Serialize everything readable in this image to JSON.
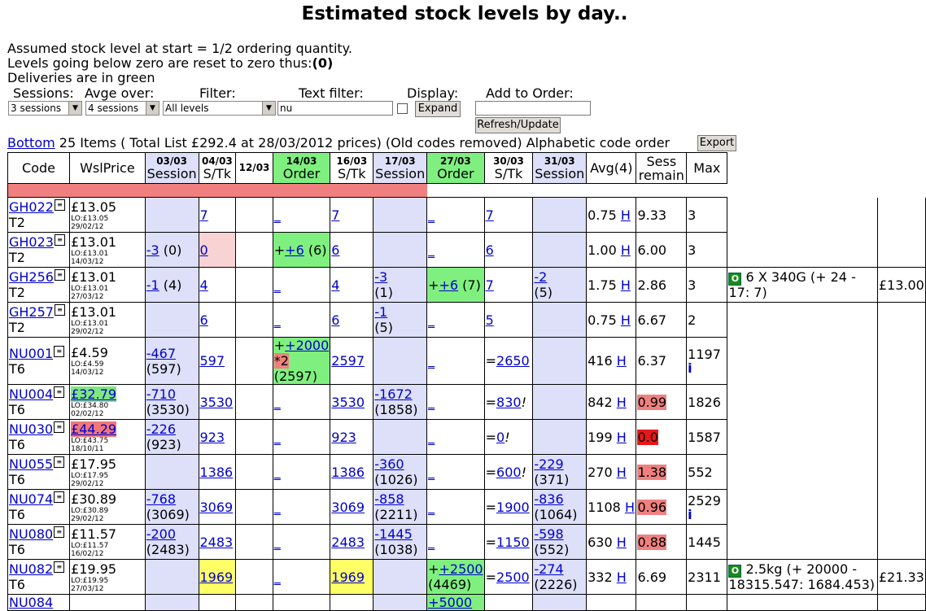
{
  "title": "Estimated stock levels by day..",
  "intro": {
    "line1": "Assumed stock level at start = 1/2 ordering quantity.",
    "line2": "Levels going below zero are reset to zero thus:",
    "line2_bold": "(0)",
    "line3": "Deliveries are in green"
  },
  "controls": {
    "sessions_label": "Sessions:",
    "avge_label": "Avge over:",
    "filter_label": "Filter:",
    "text_filter_label": "Text filter:",
    "display_label": "Display:",
    "add_order_label": "Add to Order:",
    "sessions_value": "3 sessions",
    "avge_value": "4 sessions",
    "filter_value": "All levels",
    "text_filter_value": "nu",
    "expand_label": "Expand",
    "refresh_label": "Refresh/Update",
    "export_label": "Export"
  },
  "summary": {
    "bottom_link": "Bottom",
    "text": "25 Items ( Total List £292.4 at 28/03/2012 prices) (Old codes removed) Alphabetic code order"
  },
  "headers": {
    "code": "Code",
    "price": "WslPrice",
    "c1_date": "03/03",
    "c1_type": "Session",
    "c2_date": "04/03",
    "c2_type": "S/Tk",
    "c3_date": "12/03",
    "c4_date": "14/03",
    "c4_type": "Order",
    "c5_date": "16/03",
    "c5_type": "S/Tk",
    "c6_date": "17/03",
    "c6_type": "Session",
    "c7_date": "27/03",
    "c7_type": "Order",
    "c8_date": "30/03",
    "c8_type": "S/Tk",
    "c9_date": "31/03",
    "c9_type": "Session",
    "avg": "Avg(4)",
    "sess1": "Sess",
    "sess2": "remain",
    "max": "Max"
  },
  "rows": [
    {
      "code": "GH022",
      "cat": "T2",
      "price": "£13.05",
      "lo": "LO:£13.05",
      "date": "29/02/12",
      "c1a": "",
      "c1b": "",
      "c2": "7",
      "c4": "_",
      "c5": "7",
      "c6a": "",
      "c6b": "",
      "c7": "_",
      "c8p": "",
      "c8": "7",
      "c9a": "",
      "c9b": "",
      "avg": "0.75",
      "h": "H",
      "sess": "9.33",
      "max": "3",
      "extra": "",
      "extra_price": ""
    },
    {
      "code": "GH023",
      "cat": "T2",
      "price": "£13.01",
      "lo": "LO:£13.01",
      "date": "14/03/12",
      "c1a": "-3",
      "c1b": "(0)",
      "c2": "0",
      "c4": "+6",
      "c4b": "(6)",
      "c5": "6",
      "c6a": "",
      "c6b": "",
      "c7": "_",
      "c8p": "",
      "c8": "6",
      "c9a": "",
      "c9b": "",
      "avg": "1.00",
      "h": "H",
      "sess": "6.00",
      "max": "3",
      "extra": "",
      "extra_price": ""
    },
    {
      "code": "GH256",
      "cat": "T2",
      "price": "£13.01",
      "lo": "LO:£13.01",
      "date": "27/03/12",
      "c1a": "-1",
      "c1b": "(4)",
      "c2": "4",
      "c4": "_",
      "c5": "4",
      "c6a": "-3",
      "c6b": "(1)",
      "c7": "+6",
      "c7b": "(7)",
      "c8p": "",
      "c8": "7",
      "c9a": "-2",
      "c9b": "(5)",
      "avg": "1.75",
      "h": "H",
      "sess": "2.86",
      "max": "3",
      "extra": "6 X 340G (+ 24 - 17: 7)",
      "extra_price": "£13.00"
    },
    {
      "code": "GH257",
      "cat": "T2",
      "price": "£13.01",
      "lo": "LO:£13.01",
      "date": "29/02/12",
      "c1a": "",
      "c1b": "",
      "c2": "6",
      "c4": "_",
      "c5": "6",
      "c6a": "-1",
      "c6b": "(5)",
      "c7": "_",
      "c8p": "",
      "c8": "5",
      "c9a": "",
      "c9b": "",
      "avg": "0.75",
      "h": "H",
      "sess": "6.67",
      "max": "2",
      "extra": "",
      "extra_price": ""
    },
    {
      "code": "NU001",
      "cat": "T6",
      "price": "£4.59",
      "lo": "LO:£4.59",
      "date": "14/03/12",
      "c1a": "-467",
      "c1b": "(597)",
      "c2": "597",
      "c4": "+2000",
      "c4x": "*2",
      "c4b": "(2597)",
      "c5": "2597",
      "c6a": "",
      "c6b": "",
      "c7": "_",
      "c8p": "=",
      "c8": "2650",
      "c9a": "",
      "c9b": "",
      "avg": "416",
      "h": "H",
      "sess": "6.37",
      "max": "1197",
      "extra": "",
      "extra_price": ""
    },
    {
      "code": "NU004",
      "cat": "T6",
      "price": "£32.79",
      "lo": "LO:£34.80",
      "date": "02/02/12",
      "c1a": "-710",
      "c1b": "(3530)",
      "c2": "3530",
      "c4": "_",
      "c5": "3530",
      "c6a": "-1672",
      "c6b": "(1858)",
      "c7": "_",
      "c8p": "=",
      "c8": "830",
      "c8s": "!",
      "c9a": "",
      "c9b": "",
      "avg": "842",
      "h": "H",
      "sess": "0.99",
      "max": "1826",
      "extra": "",
      "extra_price": ""
    },
    {
      "code": "NU030",
      "cat": "T6",
      "price": "£44.29",
      "lo": "LO:£43.75",
      "date": "18/10/11",
      "c1a": "-226",
      "c1b": "(923)",
      "c2": "923",
      "c4": "_",
      "c5": "923",
      "c6a": "",
      "c6b": "",
      "c7": "_",
      "c8p": "=",
      "c8": "0",
      "c8s": "!",
      "c9a": "",
      "c9b": "",
      "avg": "199",
      "h": "H",
      "sess": "0.0",
      "max": "1587",
      "extra": "",
      "extra_price": ""
    },
    {
      "code": "NU055",
      "cat": "T6",
      "price": "£17.95",
      "lo": "LO:£17.95",
      "date": "29/02/12",
      "c1a": "",
      "c1b": "",
      "c2": "1386",
      "c4": "_",
      "c5": "1386",
      "c6a": "-360",
      "c6b": "(1026)",
      "c7": "_",
      "c8p": "=",
      "c8": "600",
      "c8s": "!",
      "c9a": "-229",
      "c9b": "(371)",
      "avg": "270",
      "h": "H",
      "sess": "1.38",
      "max": "552",
      "extra": "",
      "extra_price": ""
    },
    {
      "code": "NU074",
      "cat": "T6",
      "price": "£30.89",
      "lo": "LO:£30.89",
      "date": "29/02/12",
      "c1a": "-768",
      "c1b": "(3069)",
      "c2": "3069",
      "c4": "_",
      "c5": "3069",
      "c6a": "-858",
      "c6b": "(2211)",
      "c7": "_",
      "c8p": "=",
      "c8": "1900",
      "c9a": "-836",
      "c9b": "(1064)",
      "avg": "1108",
      "h": "H",
      "sess": "0.96",
      "max": "2529",
      "extra": "",
      "extra_price": ""
    },
    {
      "code": "NU080",
      "cat": "T6",
      "price": "£11.57",
      "lo": "LO:£11.57",
      "date": "16/02/12",
      "c1a": "-200",
      "c1b": "(2483)",
      "c2": "2483",
      "c4": "_",
      "c5": "2483",
      "c6a": "-1445",
      "c6b": "(1038)",
      "c7": "_",
      "c8p": "=",
      "c8": "1150",
      "c9a": "-598",
      "c9b": "(552)",
      "avg": "630",
      "h": "H",
      "sess": "0.88",
      "max": "1445",
      "extra": "",
      "extra_price": ""
    },
    {
      "code": "NU082",
      "cat": "T6",
      "price": "£19.95",
      "lo": "LO:£19.95",
      "date": "27/03/12",
      "c1a": "",
      "c1b": "",
      "c2": "1969",
      "c4": "_",
      "c5": "1969",
      "c6a": "",
      "c6b": "",
      "c7": "+2500",
      "c7b": "(4469)",
      "c8p": "=",
      "c8": "2500",
      "c9a": "-274",
      "c9b": "(2226)",
      "avg": "332",
      "h": "H",
      "sess": "6.69",
      "max": "2311",
      "extra": "2.5kg (+ 20000 - 18315.547: 1684.453)",
      "extra_price": "£21.33"
    }
  ],
  "partial_row": {
    "code": "NU084",
    "c7": "+5000"
  },
  "colors": {
    "session": "#dde0f8",
    "order": "#7ff07f",
    "warn": "#f08080",
    "empty": "#e81818",
    "zero": "#f9d3d3",
    "highlight": "#ffff66",
    "link": "#0000cc"
  }
}
